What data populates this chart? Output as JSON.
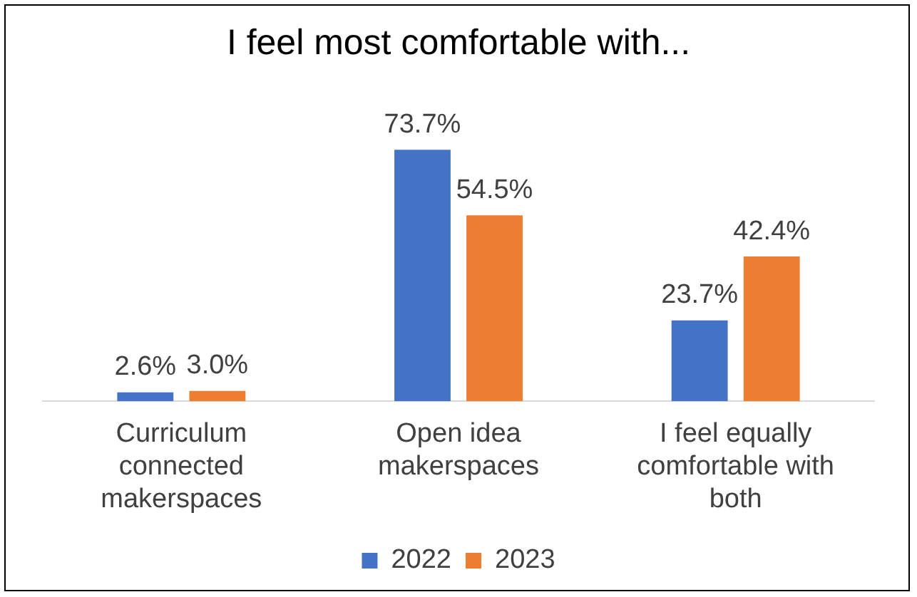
{
  "chart_data": {
    "type": "bar",
    "title": "I feel most comfortable with...",
    "categories": [
      "Curriculum connected makerspaces",
      "Open idea makerspaces",
      "I feel equally comfortable with both"
    ],
    "series": [
      {
        "name": "2022",
        "color": "#4472c4",
        "values": [
          2.6,
          73.7,
          23.7
        ],
        "value_labels": [
          "2.6%",
          "73.7%",
          "23.7%"
        ]
      },
      {
        "name": "2023",
        "color": "#ed7d31",
        "values": [
          3.0,
          54.5,
          42.4
        ],
        "value_labels": [
          "3.0%",
          "54.5%",
          "42.4%"
        ]
      }
    ],
    "legend": "bottom",
    "grid": false,
    "tick_labels": "x"
  }
}
